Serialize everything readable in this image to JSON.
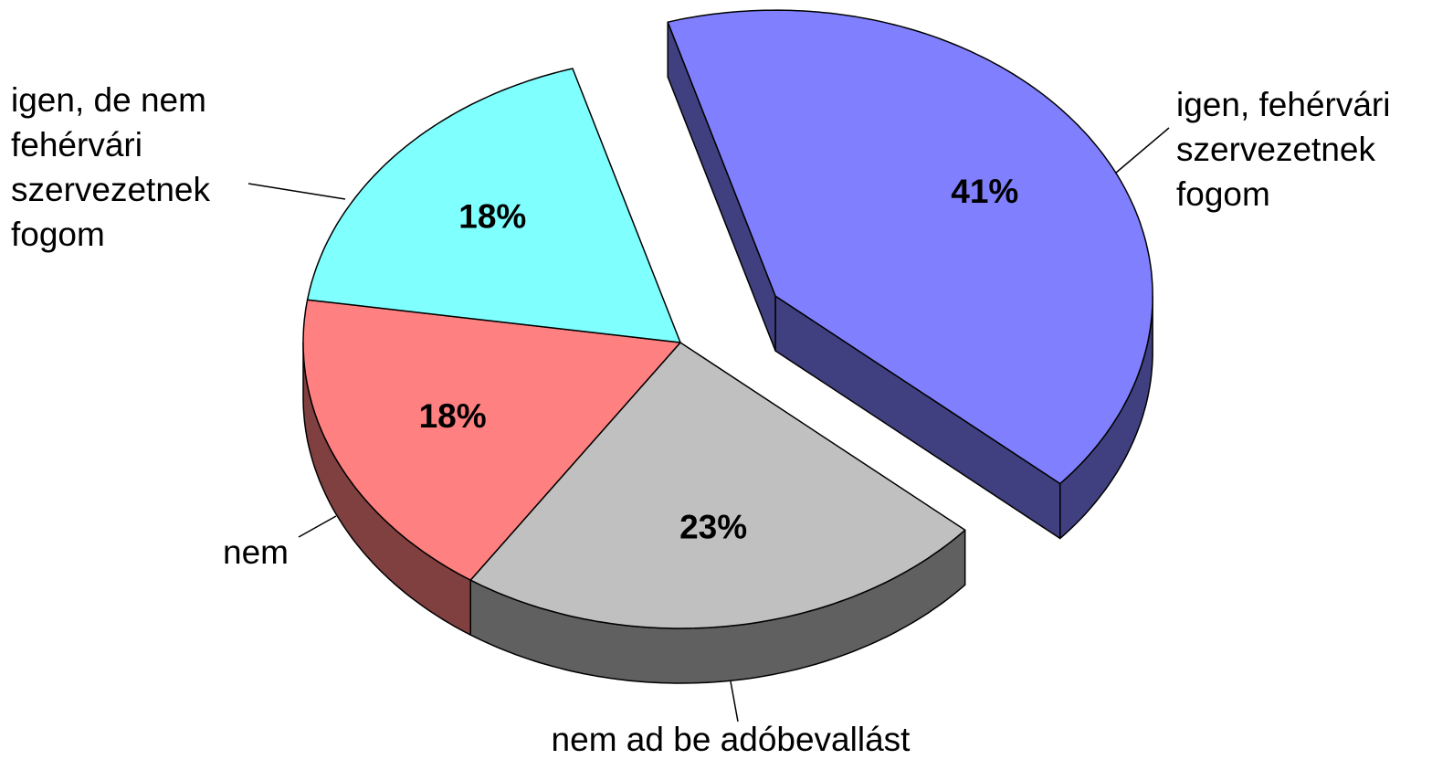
{
  "chart_data": {
    "type": "pie",
    "categories": [
      "igen, fehérvári szervezetnek fogom",
      "nem ad be adóbevallást",
      "nem",
      "igen, de nem fehérvári szervezetnek fogom"
    ],
    "values": [
      41,
      23,
      18,
      18
    ],
    "value_labels": [
      "41%",
      "23%",
      "18%",
      "18%"
    ],
    "colors": [
      "#8080ff",
      "#c0c0c0",
      "#ff8080",
      "#80ffff"
    ]
  }
}
